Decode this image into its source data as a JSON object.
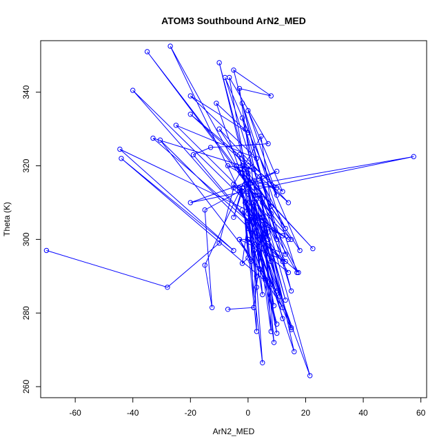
{
  "chart_data": {
    "type": "line",
    "title": "ATOM3 Southbound ArN2_MED",
    "xlabel": "ArN2_MED",
    "ylabel": "Theta (K)",
    "xlim": [
      -72,
      62
    ],
    "ylim": [
      257,
      354
    ],
    "xticks": [
      -60,
      -40,
      -20,
      0,
      20,
      40,
      60
    ],
    "yticks": [
      260,
      280,
      300,
      320,
      340
    ],
    "grid": false,
    "color": "#0000ff",
    "marker": "open-circle",
    "series": [
      {
        "points": [
          [
            -70,
            297
          ],
          [
            -28,
            287
          ],
          [
            -10,
            299
          ],
          [
            -5,
            314
          ],
          [
            57.5,
            322.5
          ],
          [
            -20,
            310
          ],
          [
            10,
            318.5
          ],
          [
            -15,
            308
          ],
          [
            -12.5,
            281.5
          ],
          [
            -15,
            293
          ],
          [
            0,
            318
          ],
          [
            -10,
            348
          ],
          [
            5,
            300
          ],
          [
            -27,
            352.5
          ],
          [
            10,
            300
          ],
          [
            -5,
            346
          ],
          [
            8,
            339
          ],
          [
            -3,
            341
          ],
          [
            2.5,
            312
          ],
          [
            -35,
            351
          ],
          [
            15,
            300
          ],
          [
            -25,
            331
          ],
          [
            3,
            322
          ],
          [
            -20,
            339
          ],
          [
            0,
            329
          ],
          [
            -11,
            337
          ],
          [
            -2.5,
            318
          ],
          [
            -7,
            320
          ],
          [
            2,
            319
          ],
          [
            -33,
            327.5
          ],
          [
            0,
            305
          ],
          [
            -40,
            340.5
          ],
          [
            5,
            306
          ],
          [
            -44.5,
            324.5
          ],
          [
            -5,
            297
          ],
          [
            -44,
            322
          ],
          [
            10,
            286
          ],
          [
            -30.5,
            327
          ],
          [
            12,
            294
          ],
          [
            -19,
            323
          ],
          [
            -13,
            325
          ],
          [
            7,
            326
          ],
          [
            -6.5,
            344
          ],
          [
            3,
            302
          ],
          [
            -3,
            323
          ],
          [
            0,
            310
          ],
          [
            -5,
            315
          ],
          [
            4.5,
            328
          ],
          [
            8,
            309
          ],
          [
            -1,
            330
          ],
          [
            5,
            310
          ],
          [
            -2,
            333
          ],
          [
            10,
            312
          ],
          [
            0,
            335
          ],
          [
            12,
            313
          ],
          [
            -20,
            334
          ],
          [
            14,
            310
          ],
          [
            -10,
            330
          ],
          [
            18,
            297
          ],
          [
            -8,
            344
          ],
          [
            15,
            286
          ],
          [
            -2,
            337
          ],
          [
            17,
            291
          ],
          [
            -4,
            320
          ],
          [
            22.5,
            297.5
          ],
          [
            -2,
            318
          ],
          [
            13,
            294
          ],
          [
            -3,
            300
          ],
          [
            12,
            281.5
          ],
          [
            0,
            303
          ],
          [
            17.5,
            291
          ],
          [
            -1,
            319
          ],
          [
            15,
            275.5
          ],
          [
            -2,
            308
          ],
          [
            10,
            277
          ],
          [
            0,
            308
          ],
          [
            14,
            300
          ],
          [
            2,
            306
          ],
          [
            10,
            274.5
          ],
          [
            4,
            306
          ],
          [
            12,
            301
          ],
          [
            5,
            304
          ],
          [
            11,
            284.5
          ],
          [
            6,
            304
          ],
          [
            13,
            283.5
          ],
          [
            3,
            311
          ],
          [
            9,
            282
          ],
          [
            -1,
            310
          ],
          [
            8,
            295
          ],
          [
            3,
            306
          ],
          [
            12,
            278.5
          ],
          [
            0,
            313
          ],
          [
            15,
            276
          ],
          [
            -3,
            314
          ],
          [
            16,
            269.5
          ],
          [
            4,
            312
          ],
          [
            21.5,
            263
          ],
          [
            -2,
            313
          ],
          [
            5,
            266.5
          ],
          [
            0,
            320
          ],
          [
            8,
            275
          ],
          [
            5,
            311
          ],
          [
            9,
            272
          ],
          [
            2,
            312
          ],
          [
            7,
            302
          ],
          [
            1,
            306
          ],
          [
            3,
            290
          ],
          [
            0,
            307
          ],
          [
            5,
            285
          ],
          [
            2,
            310
          ],
          [
            4,
            292
          ],
          [
            0,
            316
          ],
          [
            2,
            281.5
          ],
          [
            -7,
            281
          ],
          [
            2,
            281.5
          ],
          [
            5,
            300
          ],
          [
            1,
            294
          ],
          [
            -3,
            300
          ],
          [
            0,
            300
          ],
          [
            4,
            296
          ],
          [
            6,
            289
          ],
          [
            2,
            297
          ],
          [
            3,
            275
          ],
          [
            -2,
            313
          ],
          [
            -5,
            306
          ],
          [
            -2,
            314
          ],
          [
            0,
            295
          ],
          [
            -2,
            293.5
          ],
          [
            0,
            305
          ],
          [
            3,
            287
          ],
          [
            -2,
            320
          ],
          [
            8,
            307
          ],
          [
            -1,
            315
          ],
          [
            10,
            314
          ],
          [
            2,
            316
          ],
          [
            13,
            303
          ],
          [
            4,
            317
          ],
          [
            13,
            296
          ],
          [
            0,
            300
          ],
          [
            14,
            291
          ],
          [
            -3,
            313
          ],
          [
            7,
            300
          ],
          [
            2,
            310
          ],
          [
            8,
            294
          ],
          [
            4,
            300
          ]
        ]
      }
    ]
  }
}
